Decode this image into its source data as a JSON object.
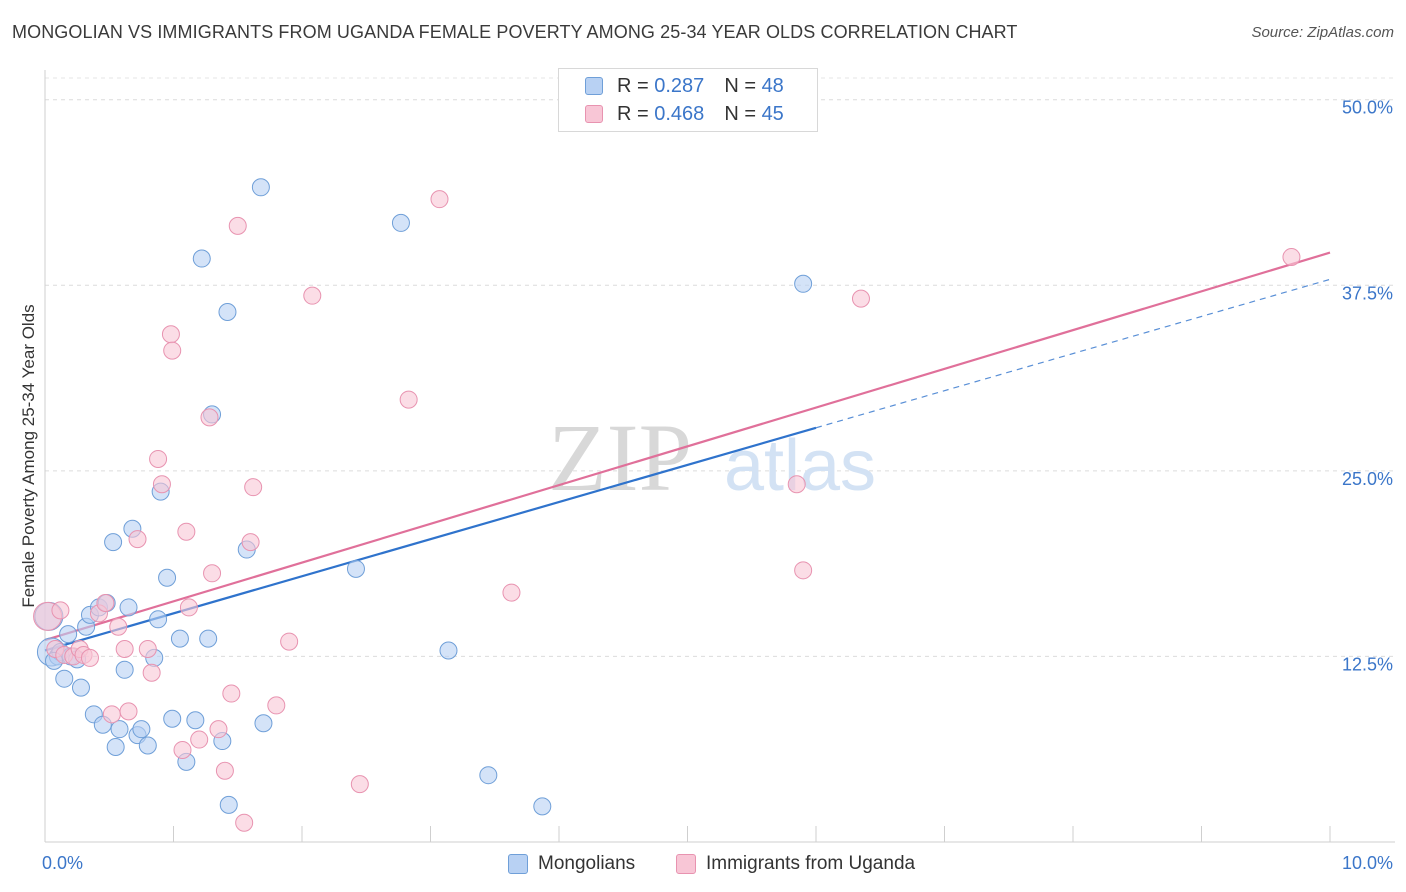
{
  "title": "MONGOLIAN VS IMMIGRANTS FROM UGANDA FEMALE POVERTY AMONG 25-34 YEAR OLDS CORRELATION CHART",
  "source": "Source: ZipAtlas.com",
  "watermark": {
    "zip": "ZIP",
    "atlas": "atlas"
  },
  "legend": {
    "r_label": "R =",
    "n_label": "N =",
    "series1": {
      "r": "0.287",
      "n": "48"
    },
    "series2": {
      "r": "0.468",
      "n": "45"
    }
  },
  "bottom_legend": {
    "series1": "Mongolians",
    "series2": "Immigrants from Uganda"
  },
  "colors": {
    "blue_fill": "#b8d1f3",
    "blue_stroke": "#6f9fd8",
    "blue_line": "#2f73cc",
    "pink_fill": "#f8c6d6",
    "pink_stroke": "#e893b0",
    "pink_line": "#e0709a",
    "axis_label": "#3b76c9"
  },
  "chart_data": {
    "type": "scatter",
    "title": "MONGOLIAN VS IMMIGRANTS FROM UGANDA FEMALE POVERTY AMONG 25-34 YEAR OLDS CORRELATION CHART",
    "xlabel": "",
    "ylabel": "Female Poverty Among 25-34 Year Olds",
    "xlim": [
      0,
      10
    ],
    "ylim": [
      0,
      52
    ],
    "x_tick_labels": {
      "min": "0.0%",
      "max": "10.0%"
    },
    "y_ticks": [
      12.5,
      25,
      37.5,
      50
    ],
    "y_tick_labels": [
      "12.5%",
      "25.0%",
      "37.5%",
      "50.0%"
    ],
    "series": [
      {
        "name": "Mongolians",
        "color": "blue",
        "points": [
          [
            0.03,
            15.2
          ],
          [
            0.05,
            12.8
          ],
          [
            0.1,
            12.5
          ],
          [
            0.12,
            12.8
          ],
          [
            0.15,
            11.0
          ],
          [
            0.18,
            14.0
          ],
          [
            0.2,
            12.5
          ],
          [
            0.25,
            12.3
          ],
          [
            0.28,
            10.4
          ],
          [
            0.32,
            14.5
          ],
          [
            0.35,
            15.3
          ],
          [
            0.38,
            8.6
          ],
          [
            0.42,
            15.8
          ],
          [
            0.45,
            7.9
          ],
          [
            0.48,
            16.1
          ],
          [
            0.53,
            20.2
          ],
          [
            0.55,
            6.4
          ],
          [
            0.58,
            7.6
          ],
          [
            0.62,
            11.6
          ],
          [
            0.65,
            15.8
          ],
          [
            0.68,
            21.1
          ],
          [
            0.72,
            7.2
          ],
          [
            0.75,
            7.6
          ],
          [
            0.8,
            6.5
          ],
          [
            0.85,
            12.4
          ],
          [
            0.9,
            23.6
          ],
          [
            0.88,
            15.0
          ],
          [
            0.95,
            17.8
          ],
          [
            0.99,
            8.3
          ],
          [
            1.05,
            13.7
          ],
          [
            1.1,
            5.4
          ],
          [
            1.17,
            8.2
          ],
          [
            1.22,
            39.3
          ],
          [
            1.27,
            13.7
          ],
          [
            1.3,
            28.8
          ],
          [
            1.38,
            6.8
          ],
          [
            1.42,
            35.7
          ],
          [
            1.43,
            2.5
          ],
          [
            1.57,
            19.7
          ],
          [
            1.68,
            44.1
          ],
          [
            1.7,
            8.0
          ],
          [
            2.42,
            18.4
          ],
          [
            2.77,
            41.7
          ],
          [
            3.14,
            12.9
          ],
          [
            3.45,
            4.5
          ],
          [
            3.87,
            2.4
          ],
          [
            5.9,
            37.6
          ],
          [
            0.07,
            12.2
          ]
        ]
      },
      {
        "name": "Immigrants from Uganda",
        "color": "pink",
        "points": [
          [
            0.02,
            15.2
          ],
          [
            0.08,
            13.0
          ],
          [
            0.15,
            12.6
          ],
          [
            0.22,
            12.5
          ],
          [
            0.27,
            13.0
          ],
          [
            0.3,
            12.6
          ],
          [
            0.35,
            12.4
          ],
          [
            0.42,
            15.4
          ],
          [
            0.47,
            16.1
          ],
          [
            0.52,
            8.6
          ],
          [
            0.57,
            14.5
          ],
          [
            0.62,
            13.0
          ],
          [
            0.65,
            8.8
          ],
          [
            0.72,
            20.4
          ],
          [
            0.8,
            13.0
          ],
          [
            0.83,
            11.4
          ],
          [
            0.88,
            25.8
          ],
          [
            0.91,
            24.1
          ],
          [
            0.98,
            34.2
          ],
          [
            0.99,
            33.1
          ],
          [
            1.07,
            6.2
          ],
          [
            1.1,
            20.9
          ],
          [
            1.12,
            15.8
          ],
          [
            1.2,
            6.9
          ],
          [
            1.28,
            28.6
          ],
          [
            1.3,
            18.1
          ],
          [
            1.35,
            7.6
          ],
          [
            1.4,
            4.8
          ],
          [
            1.45,
            10.0
          ],
          [
            1.5,
            41.5
          ],
          [
            1.55,
            1.3
          ],
          [
            1.6,
            20.2
          ],
          [
            1.62,
            23.9
          ],
          [
            1.8,
            9.2
          ],
          [
            1.9,
            13.5
          ],
          [
            2.08,
            36.8
          ],
          [
            2.45,
            3.9
          ],
          [
            2.83,
            29.8
          ],
          [
            3.07,
            43.3
          ],
          [
            3.63,
            16.8
          ],
          [
            5.85,
            24.1
          ],
          [
            5.9,
            18.3
          ],
          [
            6.35,
            36.6
          ],
          [
            9.7,
            39.4
          ],
          [
            0.12,
            15.6
          ]
        ]
      }
    ],
    "trend_lines": [
      {
        "series": "Mongolians",
        "x": [
          0,
          6.0
        ],
        "y": [
          12.9,
          27.9
        ],
        "extrapolated_x": [
          6.0,
          10.0
        ],
        "extrapolated_y": [
          27.9,
          37.9
        ]
      },
      {
        "series": "Immigrants from Uganda",
        "x": [
          0,
          10.0
        ],
        "y": [
          13.6,
          39.7
        ]
      }
    ]
  }
}
